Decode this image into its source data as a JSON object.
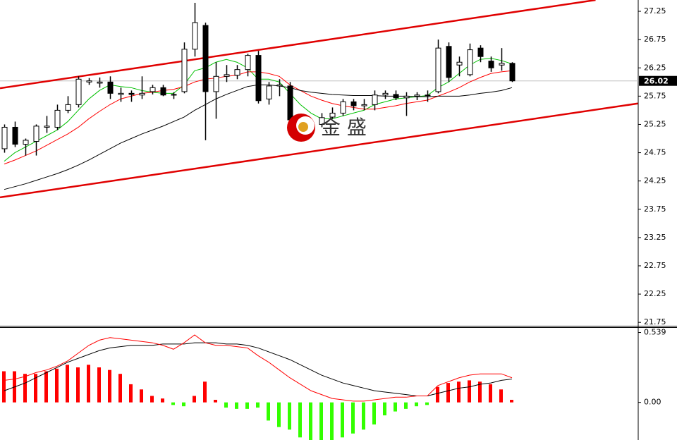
{
  "chart_data": [
    {
      "type": "candlestick",
      "categories": [
        null,
        null,
        null,
        null,
        null,
        null,
        null,
        null,
        null,
        null,
        null,
        null,
        null,
        null,
        null,
        null,
        null,
        null,
        null,
        null,
        null,
        null,
        null,
        null,
        null,
        null,
        null,
        null,
        null,
        null,
        null,
        null,
        null,
        null,
        null,
        null,
        null,
        null,
        null,
        null,
        null,
        null,
        null,
        null,
        null,
        null,
        null,
        null,
        null
      ],
      "open": [
        24.82,
        25.2,
        24.9,
        24.95,
        25.2,
        25.2,
        25.5,
        25.6,
        26.0,
        25.98,
        26.0,
        25.78,
        25.8,
        25.77,
        25.83,
        25.9,
        25.77,
        25.83,
        26.58,
        27.0,
        25.83,
        26.1,
        26.12,
        26.22,
        26.47,
        25.7,
        25.93,
        25.93,
        25.33,
        25.22,
        25.25,
        25.38,
        25.45,
        25.65,
        25.58,
        25.6,
        25.77,
        25.78,
        25.72,
        25.75,
        25.76,
        25.83,
        26.63,
        26.3,
        26.13,
        26.6,
        26.37,
        26.3,
        26.33
      ],
      "high": [
        25.25,
        25.3,
        25.0,
        25.25,
        25.4,
        25.6,
        25.75,
        26.1,
        26.07,
        26.08,
        26.1,
        25.9,
        25.85,
        26.1,
        25.95,
        25.95,
        25.82,
        26.7,
        27.4,
        27.05,
        26.35,
        26.3,
        26.3,
        26.5,
        26.55,
        26.0,
        26.05,
        26.0,
        25.4,
        25.35,
        25.45,
        25.55,
        25.7,
        25.7,
        25.7,
        25.85,
        25.85,
        25.85,
        25.82,
        25.82,
        25.85,
        26.75,
        26.7,
        26.45,
        26.68,
        26.65,
        26.45,
        26.6,
        26.35
      ],
      "low": [
        24.75,
        24.85,
        24.7,
        24.7,
        25.1,
        25.15,
        25.45,
        25.55,
        25.95,
        25.9,
        25.7,
        25.65,
        25.65,
        25.7,
        25.78,
        25.75,
        25.7,
        25.8,
        26.45,
        24.97,
        25.35,
        26.0,
        26.05,
        26.1,
        25.62,
        25.6,
        25.75,
        25.3,
        25.1,
        25.15,
        25.2,
        25.35,
        25.4,
        25.5,
        25.5,
        25.5,
        25.7,
        25.68,
        25.4,
        25.68,
        25.65,
        25.8,
        26.0,
        26.1,
        26.1,
        26.35,
        26.18,
        26.2,
        26.0
      ],
      "close": [
        25.2,
        24.9,
        24.97,
        25.22,
        25.22,
        25.5,
        25.6,
        26.05,
        26.02,
        26.0,
        25.8,
        25.8,
        25.78,
        25.8,
        25.9,
        25.77,
        25.78,
        26.58,
        27.05,
        25.83,
        26.1,
        26.13,
        26.22,
        26.47,
        25.67,
        25.93,
        25.95,
        25.33,
        25.2,
        25.25,
        25.37,
        25.45,
        25.65,
        25.58,
        25.6,
        25.77,
        25.8,
        25.72,
        25.75,
        25.77,
        25.77,
        26.6,
        26.08,
        26.35,
        26.57,
        26.45,
        26.25,
        26.33,
        26.02
      ],
      "up_color": "#ffffff",
      "down_color": "#000000",
      "series": [
        {
          "color": "#00c000",
          "values": [
            24.6,
            24.75,
            24.85,
            24.95,
            25.05,
            25.15,
            25.3,
            25.5,
            25.7,
            25.85,
            25.95,
            25.92,
            25.9,
            25.85,
            25.82,
            25.8,
            25.8,
            25.95,
            26.2,
            26.25,
            26.35,
            26.4,
            26.35,
            26.25,
            26.05,
            26.05,
            26.0,
            25.8,
            25.6,
            25.45,
            25.35,
            25.35,
            25.4,
            25.45,
            25.5,
            25.6,
            25.65,
            25.7,
            25.72,
            25.74,
            25.76,
            25.9,
            26.0,
            26.15,
            26.3,
            26.4,
            26.42,
            26.38,
            26.32
          ]
        },
        {
          "color": "#ff0000",
          "values": [
            24.55,
            24.62,
            24.7,
            24.78,
            24.88,
            24.98,
            25.08,
            25.2,
            25.35,
            25.48,
            25.6,
            25.7,
            25.75,
            25.8,
            25.82,
            25.85,
            25.87,
            25.92,
            26.0,
            26.05,
            26.07,
            26.1,
            26.12,
            26.18,
            26.18,
            26.15,
            26.1,
            25.95,
            25.85,
            25.75,
            25.68,
            25.62,
            25.58,
            25.55,
            25.52,
            25.52,
            25.55,
            25.58,
            25.62,
            25.65,
            25.68,
            25.75,
            25.82,
            25.9,
            26.0,
            26.08,
            26.15,
            26.18,
            26.2
          ]
        },
        {
          "color": "#000000",
          "values": [
            24.1,
            24.15,
            24.2,
            24.26,
            24.32,
            24.38,
            24.45,
            24.53,
            24.62,
            24.72,
            24.82,
            24.92,
            25.0,
            25.08,
            25.15,
            25.22,
            25.3,
            25.38,
            25.5,
            25.6,
            25.7,
            25.78,
            25.85,
            25.92,
            25.95,
            25.95,
            25.93,
            25.9,
            25.85,
            25.82,
            25.8,
            25.78,
            25.77,
            25.76,
            25.76,
            25.76,
            25.75,
            25.75,
            25.75,
            25.74,
            25.74,
            25.75,
            25.75,
            25.75,
            25.77,
            25.8,
            25.82,
            25.85,
            25.9
          ]
        }
      ],
      "trendlines": [
        {
          "color": "#e00000",
          "start": [
            -0.4,
            25.89
          ],
          "end": [
            55.9,
            27.45
          ]
        },
        {
          "color": "#e00000",
          "start": [
            -0.4,
            23.96
          ],
          "end": [
            59.9,
            25.62
          ]
        }
      ],
      "last_price": 26.02,
      "watermark": "金 盛",
      "ylim": [
        21.69,
        27.45
      ],
      "yticks": [
        27.25,
        26.75,
        26.25,
        25.75,
        25.25,
        24.75,
        24.25,
        23.75,
        23.25,
        22.75,
        22.25,
        21.75
      ]
    },
    {
      "type": "macd",
      "categories": [
        null,
        null,
        null,
        null,
        null,
        null,
        null,
        null,
        null,
        null,
        null,
        null,
        null,
        null,
        null,
        null,
        null,
        null,
        null,
        null,
        null,
        null,
        null,
        null,
        null,
        null,
        null,
        null,
        null,
        null,
        null,
        null,
        null,
        null,
        null,
        null,
        null,
        null,
        null,
        null,
        null,
        null,
        null,
        null,
        null,
        null,
        null,
        null,
        null
      ],
      "histogram": [
        0.24,
        0.24,
        0.22,
        0.22,
        0.24,
        0.26,
        0.29,
        0.27,
        0.29,
        0.27,
        0.25,
        0.22,
        0.14,
        0.1,
        0.05,
        0.03,
        -0.02,
        -0.03,
        0.05,
        0.16,
        0.02,
        -0.04,
        -0.05,
        -0.05,
        -0.04,
        -0.14,
        -0.19,
        -0.21,
        -0.27,
        -0.29,
        -0.29,
        -0.29,
        -0.27,
        -0.24,
        -0.21,
        -0.17,
        -0.1,
        -0.07,
        -0.05,
        -0.03,
        -0.02,
        0.12,
        0.15,
        0.16,
        0.17,
        0.16,
        0.14,
        0.1,
        0.02
      ],
      "up_color": "#ff0000",
      "down_color": "#33ff00",
      "series": [
        {
          "color": "#000000",
          "values": [
            0.09,
            0.12,
            0.15,
            0.19,
            0.23,
            0.27,
            0.31,
            0.34,
            0.37,
            0.4,
            0.42,
            0.43,
            0.44,
            0.44,
            0.44,
            0.45,
            0.45,
            0.45,
            0.46,
            0.46,
            0.46,
            0.45,
            0.45,
            0.44,
            0.42,
            0.39,
            0.36,
            0.33,
            0.29,
            0.25,
            0.21,
            0.18,
            0.15,
            0.13,
            0.11,
            0.09,
            0.08,
            0.07,
            0.06,
            0.05,
            0.05,
            0.07,
            0.09,
            0.11,
            0.12,
            0.14,
            0.15,
            0.17,
            0.18
          ]
        },
        {
          "color": "#ff0000",
          "values": [
            0.17,
            0.18,
            0.2,
            0.23,
            0.25,
            0.28,
            0.32,
            0.38,
            0.44,
            0.48,
            0.5,
            0.49,
            0.48,
            0.47,
            0.46,
            0.44,
            0.41,
            0.46,
            0.52,
            0.46,
            0.44,
            0.44,
            0.43,
            0.42,
            0.36,
            0.31,
            0.25,
            0.19,
            0.14,
            0.09,
            0.06,
            0.03,
            0.02,
            0.01,
            0.01,
            0.02,
            0.03,
            0.04,
            0.04,
            0.05,
            0.05,
            0.13,
            0.16,
            0.19,
            0.21,
            0.22,
            0.22,
            0.22,
            0.19
          ]
        }
      ],
      "ylim": [
        -0.29,
        0.58
      ],
      "yticks": [
        {
          "value": 0.539,
          "label": "0.539"
        },
        {
          "value": 0,
          "label": "0.00"
        }
      ]
    }
  ]
}
